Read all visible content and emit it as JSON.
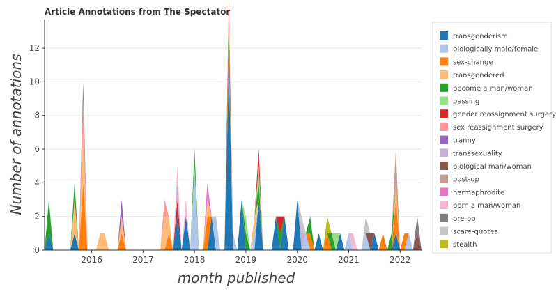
{
  "chart_data": {
    "type": "area",
    "stacked": true,
    "title": "Article Annotations from The Spectator",
    "xlabel": "month published",
    "ylabel": "Number of annotations",
    "xlim": [
      "2015-02",
      "2022-06"
    ],
    "ylim": [
      0,
      13.7
    ],
    "x_ticks": [
      "2016",
      "2017",
      "2018",
      "2019",
      "2020",
      "2021",
      "2022"
    ],
    "y_ticks": [
      0,
      2,
      4,
      6,
      8,
      10,
      12
    ],
    "grid": "horizontal",
    "legend_position": "right",
    "series": [
      {
        "name": "transgenderism",
        "color": "#1f77b4",
        "points": [
          [
            "2015-03",
            1
          ],
          [
            "2015-09",
            1
          ],
          [
            "2017-09",
            2
          ],
          [
            "2017-11",
            2
          ],
          [
            "2018-05",
            2
          ],
          [
            "2018-09",
            11
          ],
          [
            "2018-12",
            3
          ],
          [
            "2019-04",
            3
          ],
          [
            "2019-08",
            2
          ],
          [
            "2019-10",
            2
          ],
          [
            "2020-01",
            3
          ],
          [
            "2020-06",
            1
          ],
          [
            "2020-11",
            1
          ],
          [
            "2021-07",
            1
          ],
          [
            "2021-12",
            1
          ]
        ]
      },
      {
        "name": "biologically male/female",
        "color": "#aec7e8",
        "points": [
          [
            "2018-01",
            5
          ],
          [
            "2018-06",
            2
          ],
          [
            "2018-10",
            1
          ],
          [
            "2019-03",
            1
          ],
          [
            "2020-03",
            1
          ],
          [
            "2021-01",
            1
          ],
          [
            "2021-05",
            1
          ],
          [
            "2022-03",
            1
          ]
        ]
      },
      {
        "name": "sex-change",
        "color": "#ff7f0e",
        "points": [
          [
            "2015-11",
            4
          ],
          [
            "2016-08",
            1
          ],
          [
            "2017-07",
            1
          ],
          [
            "2018-04",
            2
          ],
          [
            "2018-09",
            1
          ],
          [
            "2020-04",
            1
          ],
          [
            "2020-08",
            1
          ],
          [
            "2021-09",
            1
          ],
          [
            "2021-12",
            2
          ],
          [
            "2022-02",
            1
          ]
        ]
      },
      {
        "name": "transgendered",
        "color": "#ffbb78",
        "points": [
          [
            "2015-09",
            2
          ],
          [
            "2015-11",
            3
          ],
          [
            "2016-03",
            1
          ],
          [
            "2016-04",
            1
          ],
          [
            "2016-08",
            1
          ],
          [
            "2017-06",
            2
          ],
          [
            "2017-07",
            1
          ],
          [
            "2018-04",
            1
          ],
          [
            "2019-03",
            1
          ],
          [
            "2021-12",
            1
          ]
        ]
      },
      {
        "name": "become a man/woman",
        "color": "#2ca02c",
        "points": [
          [
            "2015-03",
            2
          ],
          [
            "2015-09",
            1
          ],
          [
            "2018-01",
            1
          ],
          [
            "2018-09",
            1
          ],
          [
            "2019-01",
            1
          ],
          [
            "2019-04",
            1
          ],
          [
            "2019-09",
            1
          ],
          [
            "2020-04",
            1
          ],
          [
            "2020-09",
            1
          ],
          [
            "2021-11",
            1
          ]
        ]
      },
      {
        "name": "passing",
        "color": "#98df8a",
        "points": [
          [
            "2019-01",
            1
          ],
          [
            "2019-04",
            1
          ],
          [
            "2020-10",
            1
          ]
        ]
      },
      {
        "name": "gender reassignment surgery",
        "color": "#d62728",
        "points": [
          [
            "2017-09",
            1
          ],
          [
            "2018-09",
            1
          ],
          [
            "2019-04",
            1
          ],
          [
            "2019-09",
            1
          ]
        ]
      },
      {
        "name": "sex reassignment surgery",
        "color": "#ff9896",
        "points": [
          [
            "2015-11",
            2
          ],
          [
            "2017-06",
            1
          ],
          [
            "2018-09",
            1
          ]
        ]
      },
      {
        "name": "tranny",
        "color": "#9467bd",
        "points": [
          [
            "2016-08",
            1
          ]
        ]
      },
      {
        "name": "transsexuality",
        "color": "#c5b0d5",
        "points": [
          [
            "2017-09",
            1
          ],
          [
            "2020-02",
            1
          ]
        ]
      },
      {
        "name": "biological man/woman",
        "color": "#8c564b",
        "points": [
          [
            "2021-06",
            1
          ],
          [
            "2022-05",
            1
          ]
        ]
      },
      {
        "name": "post-op",
        "color": "#c49c94",
        "points": [
          [
            "2021-12",
            2
          ]
        ]
      },
      {
        "name": "hermaphrodite",
        "color": "#e377c2",
        "points": [
          [
            "2018-04",
            1
          ]
        ]
      },
      {
        "name": "born a man/woman",
        "color": "#f7b6d2",
        "points": [
          [
            "2017-09",
            1
          ],
          [
            "2017-11",
            1
          ],
          [
            "2021-02",
            1
          ]
        ]
      },
      {
        "name": "pre-op",
        "color": "#7f7f7f",
        "points": [
          [
            "2015-11",
            1
          ],
          [
            "2022-05",
            1
          ]
        ]
      },
      {
        "name": "scare-quotes",
        "color": "#c7c7c7",
        "points": [
          [
            "2020-02",
            1
          ],
          [
            "2021-05",
            1
          ]
        ]
      },
      {
        "name": "stealth",
        "color": "#bcbd22",
        "points": [
          [
            "2020-08",
            1
          ]
        ]
      }
    ]
  }
}
